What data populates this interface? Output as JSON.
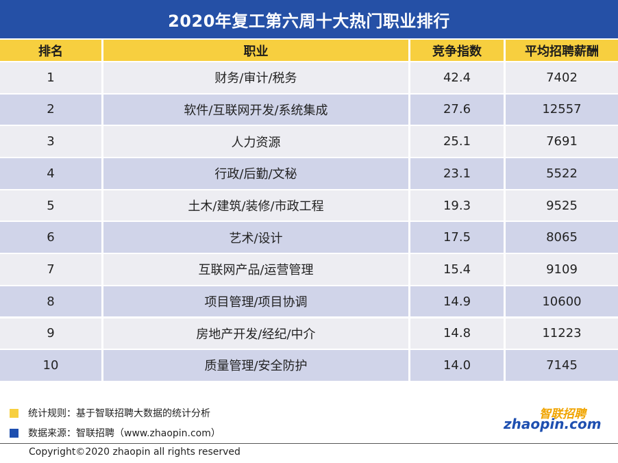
{
  "title": "2020年复工第六周十大热门职业排行",
  "colors": {
    "title_bg": "#2550a6",
    "header_bg": "#f7cf3f",
    "row_light": "#ededf2",
    "row_dark": "#d0d4e9",
    "accent_yellow": "#f7cf3f",
    "accent_blue": "#1e4fb0"
  },
  "chart_data": {
    "type": "table",
    "title": "2020年复工第六周十大热门职业排行",
    "columns": [
      "排名",
      "职业",
      "竞争指数",
      "平均招聘薪酬"
    ],
    "rows": [
      [
        "1",
        "财务/审计/税务",
        "42.4",
        "7402"
      ],
      [
        "2",
        "软件/互联网开发/系统集成",
        "27.6",
        "12557"
      ],
      [
        "3",
        "人力资源",
        "25.1",
        "7691"
      ],
      [
        "4",
        "行政/后勤/文秘",
        "23.1",
        "5522"
      ],
      [
        "5",
        "土木/建筑/装修/市政工程",
        "19.3",
        "9525"
      ],
      [
        "6",
        "艺术/设计",
        "17.5",
        "8065"
      ],
      [
        "7",
        "互联网产品/运营管理",
        "15.4",
        "9109"
      ],
      [
        "8",
        "项目管理/项目协调",
        "14.9",
        "10600"
      ],
      [
        "9",
        "房地产开发/经纪/中介",
        "14.8",
        "11223"
      ],
      [
        "10",
        "质量管理/安全防护",
        "14.0",
        "7145"
      ]
    ]
  },
  "footer": {
    "note_rule": "统计规则：基于智联招聘大数据的统计分析",
    "note_source": "数据来源：智联招聘（www.zhaopin.com）",
    "copyright": "Copyright©2020 zhaopin all rights reserved",
    "logo_cn": "智联招聘",
    "logo_en": "zhaopin.com"
  }
}
